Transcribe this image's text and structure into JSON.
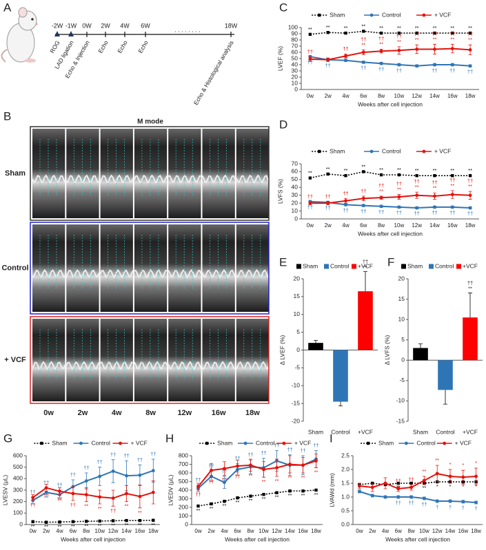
{
  "timeline": {
    "panel": "A",
    "weeks": [
      "-2W",
      "-1W",
      "0W",
      "2W",
      "4W",
      "6W",
      "18W"
    ],
    "ellipsis": ". . . . . . . .",
    "events": [
      "ROG",
      "LAD ligation",
      "Echo & Injection",
      "Echo",
      "Echo",
      "Echo",
      "Echo & Histological analysis"
    ]
  },
  "m_mode": {
    "panel": "B",
    "title": "M mode",
    "rows": [
      "Sham",
      "Control",
      "+ VCF"
    ],
    "columns": [
      "0w",
      "2w",
      "4w",
      "8w",
      "12w",
      "16w",
      "18w"
    ]
  },
  "chart_data": [
    {
      "panel": "C",
      "type": "line",
      "ylabel": "LVEF (%)",
      "xlabel": "Weeks after cell injection",
      "categories": [
        "0w",
        "2w",
        "4w",
        "6w",
        "8w",
        "10w",
        "12w",
        "14w",
        "16w",
        "18w"
      ],
      "ylim": [
        0,
        100
      ],
      "yticks": [
        0,
        10,
        20,
        30,
        40,
        50,
        60,
        70,
        80,
        90,
        100
      ],
      "series": [
        {
          "name": "Sham",
          "color": "#000000",
          "dash": true,
          "marker": "square",
          "values": [
            89,
            92,
            91,
            94,
            91,
            91,
            91,
            91,
            91,
            91
          ],
          "sig": [
            [
              "**"
            ],
            [
              "**"
            ],
            [
              "**"
            ],
            [
              "**"
            ],
            [
              "**"
            ],
            [
              "**"
            ],
            [
              "**"
            ],
            [
              "**"
            ],
            [
              "**"
            ],
            [
              "**"
            ]
          ]
        },
        {
          "name": "Control",
          "color": "#2e75b6",
          "marker": "circle",
          "values": [
            53,
            48,
            47,
            44,
            42,
            40,
            38,
            40,
            40,
            38
          ],
          "errors": [
            2,
            2,
            2,
            2,
            2,
            2,
            2,
            2,
            2,
            2
          ],
          "sig": [
            [
              "††"
            ],
            [
              "††"
            ],
            null,
            [
              "††"
            ],
            [
              "††"
            ],
            [
              "††"
            ],
            null,
            [
              "††"
            ],
            [
              "††"
            ],
            [
              "††"
            ]
          ]
        },
        {
          "name": "+ VCF",
          "color": "#e3120b",
          "marker": "circle",
          "values": [
            49,
            48,
            54,
            60,
            62,
            63,
            65,
            65,
            66,
            64
          ],
          "errors": [
            4,
            3,
            3,
            4,
            3,
            6,
            7,
            8,
            7,
            8
          ],
          "sig": [
            [
              "††"
            ],
            null,
            [
              "††"
            ],
            [
              "††",
              "**"
            ],
            [
              "††",
              "**"
            ],
            [
              "††",
              "**"
            ],
            [
              "††",
              "**"
            ],
            [
              "††",
              "**"
            ],
            [
              "††",
              "**"
            ],
            [
              "††",
              "**"
            ]
          ]
        }
      ]
    },
    {
      "panel": "D",
      "type": "line",
      "ylabel": "LVFS (%)",
      "xlabel": "Weeks after cell injection",
      "categories": [
        "0w",
        "2w",
        "4w",
        "6w",
        "8w",
        "10w",
        "12w",
        "14w",
        "16w",
        "18w"
      ],
      "ylim": [
        0,
        70
      ],
      "yticks": [
        0,
        10,
        20,
        30,
        40,
        50,
        60,
        70
      ],
      "series": [
        {
          "name": "Sham",
          "color": "#000000",
          "dash": true,
          "marker": "square",
          "values": [
            52,
            57,
            55,
            60,
            56,
            56,
            55,
            55,
            55,
            55
          ],
          "sig": [
            [
              "**"
            ],
            [
              "**"
            ],
            [
              "**"
            ],
            [
              "**"
            ],
            [
              "**"
            ],
            [
              "**"
            ],
            [
              "**"
            ],
            [
              "**"
            ],
            [
              "**"
            ],
            [
              "**"
            ]
          ]
        },
        {
          "name": "Control",
          "color": "#2e75b6",
          "marker": "circle",
          "values": [
            22,
            21,
            18,
            17,
            16,
            15,
            14,
            15,
            15,
            14
          ],
          "errors": [
            1.5,
            1.5,
            1.5,
            1.5,
            1.5,
            1.5,
            1.5,
            1.5,
            1.5,
            1.5
          ],
          "sig": [
            [
              "††"
            ],
            [
              "††"
            ],
            [
              "††"
            ],
            [
              "††"
            ],
            [
              "††"
            ],
            [
              "††"
            ],
            [
              "††"
            ],
            [
              "††"
            ],
            [
              "††"
            ],
            [
              "††"
            ]
          ]
        },
        {
          "name": "+ VCF",
          "color": "#e3120b",
          "marker": "circle",
          "values": [
            20,
            20,
            23,
            26,
            27,
            28,
            30,
            29,
            31,
            30
          ],
          "errors": [
            2,
            2,
            3,
            3,
            2,
            3,
            4,
            4,
            5,
            5
          ],
          "sig": [
            [
              "††"
            ],
            [
              "††"
            ],
            [
              "††"
            ],
            [
              "††"
            ],
            [
              "††",
              "**"
            ],
            [
              "††",
              "**"
            ],
            [
              "††",
              "**"
            ],
            [
              "††",
              "**"
            ],
            [
              "††",
              "**"
            ],
            [
              "††",
              "**"
            ]
          ]
        }
      ]
    },
    {
      "panel": "E",
      "type": "bar",
      "ylabel": "Δ LVEF (%)",
      "legend": [
        "Sham",
        "Control",
        "+VCF"
      ],
      "categories": [
        "Sham",
        "Control",
        "+VCF"
      ],
      "values": [
        2,
        -14.5,
        16.5
      ],
      "errors": [
        0.7,
        1.2,
        5.5
      ],
      "colors": [
        "#000000",
        "#2e75b6",
        "#ff0000"
      ],
      "sig": [
        null,
        null,
        [
          "††",
          "**"
        ]
      ],
      "ylim": [
        -20,
        20
      ],
      "yticks": [
        -20,
        -15,
        -10,
        -5,
        0,
        5,
        10,
        15,
        20
      ]
    },
    {
      "panel": "F",
      "type": "bar",
      "ylabel": "Δ LVFS (%)",
      "legend": [
        "Sham",
        "Control",
        "+VCF"
      ],
      "categories": [
        "Sham",
        "Control",
        "+VCF"
      ],
      "values": [
        3,
        -7.3,
        10.5
      ],
      "errors": [
        1,
        3.5,
        6
      ],
      "colors": [
        "#000000",
        "#2e75b6",
        "#ff0000"
      ],
      "sig": [
        null,
        null,
        [
          "††",
          "**"
        ]
      ],
      "ylim": [
        -15,
        20
      ],
      "yticks": [
        -15,
        -10,
        -5,
        0,
        5,
        10,
        15,
        20
      ]
    },
    {
      "panel": "G",
      "type": "line",
      "ylabel": "LVESV (μL)",
      "xlabel": "Weeks after cell injection",
      "categories": [
        "0w",
        "2w",
        "4w",
        "6w",
        "8w",
        "10w",
        "12w",
        "14w",
        "16w",
        "18w"
      ],
      "ylim": [
        0,
        600
      ],
      "yticks": [
        0,
        100,
        200,
        300,
        400,
        500,
        600
      ],
      "series": [
        {
          "name": "Sham",
          "color": "#000000",
          "dash": true,
          "marker": "square",
          "values": [
            25,
            20,
            22,
            25,
            28,
            30,
            33,
            35,
            35,
            37
          ],
          "sig": [
            [
              "**"
            ],
            [
              "**"
            ],
            [
              "**"
            ],
            [
              "**"
            ],
            [
              "**"
            ],
            [
              "**"
            ],
            [
              "**"
            ],
            [
              "**"
            ],
            [
              "**"
            ],
            [
              "**"
            ]
          ]
        },
        {
          "name": "Control",
          "color": "#2e75b6",
          "marker": "circle",
          "values": [
            210,
            280,
            260,
            330,
            380,
            420,
            465,
            425,
            430,
            470
          ],
          "errors": [
            30,
            40,
            40,
            60,
            70,
            80,
            100,
            130,
            90,
            100
          ],
          "sig": [
            [
              "††"
            ],
            [
              "††"
            ],
            [
              "††"
            ],
            [
              "††"
            ],
            [
              "††"
            ],
            [
              "††"
            ],
            [
              "††"
            ],
            [
              "††"
            ],
            [
              "††"
            ],
            [
              "††"
            ]
          ]
        },
        {
          "name": "+ VCF",
          "color": "#e3120b",
          "marker": "circle",
          "values": [
            235,
            320,
            290,
            270,
            260,
            240,
            230,
            270,
            245,
            280
          ],
          "errors": [
            25,
            30,
            30,
            60,
            60,
            60,
            70,
            70,
            100,
            100
          ],
          "sig": [
            [
              "††"
            ],
            [
              "††"
            ],
            [
              "††"
            ],
            [
              "††"
            ],
            [
              "**"
            ],
            [
              "**"
            ],
            [
              "††"
            ],
            [
              "**"
            ],
            [
              "**"
            ],
            null
          ]
        }
      ]
    },
    {
      "panel": "H",
      "type": "line",
      "ylabel": "LVEDV (μL)",
      "xlabel": "Weeks after cell injection",
      "categories": [
        "0w",
        "2w",
        "4w",
        "6w",
        "8w",
        "10w",
        "12w",
        "14w",
        "16w",
        "18w"
      ],
      "ylim": [
        0,
        800
      ],
      "yticks": [
        0,
        100,
        200,
        300,
        400,
        500,
        600,
        700,
        800
      ],
      "series": [
        {
          "name": "Sham",
          "color": "#000000",
          "dash": true,
          "marker": "square",
          "values": [
            215,
            240,
            270,
            310,
            330,
            350,
            370,
            390,
            390,
            400
          ],
          "sig": [
            [
              "**"
            ],
            [
              "**"
            ],
            [
              "**"
            ],
            [
              "**"
            ],
            [
              "**"
            ],
            [
              "**"
            ],
            [
              "**"
            ],
            [
              "**"
            ],
            [
              "**"
            ],
            [
              "**"
            ]
          ]
        },
        {
          "name": "Control",
          "color": "#2e75b6",
          "marker": "circle",
          "values": [
            420,
            560,
            490,
            640,
            670,
            660,
            740,
            690,
            690,
            760
          ],
          "errors": [
            40,
            60,
            70,
            70,
            80,
            110,
            120,
            120,
            110,
            100
          ],
          "sig": [
            [
              "††"
            ],
            [
              "††"
            ],
            [
              "††"
            ],
            [
              "††"
            ],
            [
              "††"
            ],
            [
              "††"
            ],
            [
              "††"
            ],
            [
              "††"
            ],
            [
              "††"
            ],
            [
              "††"
            ]
          ]
        },
        {
          "name": "+ VCF",
          "color": "#e3120b",
          "marker": "circle",
          "values": [
            440,
            630,
            650,
            680,
            690,
            640,
            660,
            700,
            690,
            740
          ],
          "errors": [
            40,
            80,
            80,
            70,
            70,
            90,
            100,
            100,
            90,
            80
          ],
          "sig": [
            [
              "††"
            ],
            [
              "††"
            ],
            [
              "††"
            ],
            [
              "††"
            ],
            [
              "**"
            ],
            [
              "**"
            ],
            [
              "**"
            ],
            [
              "**"
            ],
            [
              "**"
            ],
            [
              "**"
            ]
          ]
        }
      ]
    },
    {
      "panel": "I",
      "type": "line",
      "ylabel": "LVAWd (mm)",
      "xlabel": "Weeks after cell injection",
      "categories": [
        "0w",
        "2w",
        "4w",
        "6w",
        "8w",
        "10w",
        "12w",
        "14w",
        "16w",
        "18w"
      ],
      "ylim": [
        0,
        2.5
      ],
      "yticks": [
        {
          "value": 0,
          "label": "0.0"
        },
        0.5,
        {
          "value": 1,
          "label": "1.0"
        },
        1.5,
        {
          "value": 2,
          "label": "2.0"
        },
        2.5
      ],
      "series": [
        {
          "name": "Sham",
          "color": "#000000",
          "dash": true,
          "marker": "square",
          "values": [
            1.45,
            1.5,
            1.45,
            1.5,
            1.5,
            1.5,
            1.55,
            1.55,
            1.55,
            1.55
          ],
          "sig": [
            null,
            null,
            null,
            [
              "**"
            ],
            [
              "**"
            ],
            [
              "**"
            ],
            [
              "*"
            ],
            [
              "*"
            ],
            [
              "*"
            ],
            [
              "*"
            ]
          ]
        },
        {
          "name": "Control",
          "color": "#2e75b6",
          "marker": "circle",
          "values": [
            1.2,
            1.05,
            1.0,
            1.0,
            1.0,
            0.95,
            0.85,
            0.85,
            0.83,
            0.8
          ],
          "errors": [
            0.05,
            0.05,
            0.05,
            0.05,
            0.05,
            0.05,
            0.05,
            0.05,
            0.05,
            0.05
          ],
          "sig": [
            null,
            null,
            null,
            [
              "††"
            ],
            [
              "††"
            ],
            [
              "††"
            ],
            [
              "†"
            ],
            [
              "†"
            ],
            [
              "†"
            ],
            [
              "†"
            ]
          ]
        },
        {
          "name": "+ VCF",
          "color": "#e3120b",
          "marker": "circle",
          "values": [
            1.4,
            1.35,
            1.5,
            1.3,
            1.35,
            1.6,
            1.85,
            1.75,
            1.72,
            1.75
          ],
          "errors": [
            0.1,
            0.15,
            0.2,
            0.1,
            0.1,
            0.15,
            0.3,
            0.25,
            0.25,
            0.3
          ],
          "sig": [
            null,
            null,
            null,
            [
              "††"
            ],
            [
              "††"
            ],
            [
              "**"
            ],
            [
              "**"
            ],
            [
              "*"
            ],
            [
              "*"
            ],
            [
              "*"
            ]
          ]
        }
      ]
    }
  ]
}
